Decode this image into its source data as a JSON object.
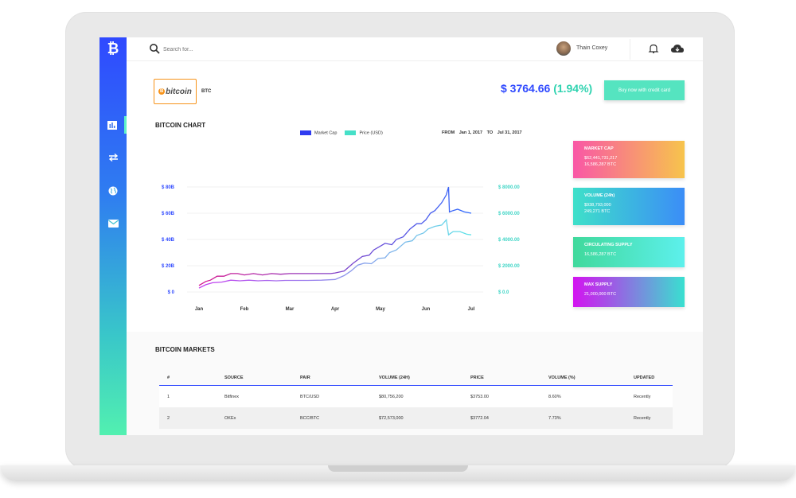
{
  "topbar": {
    "search_placeholder": "Search for...",
    "user_name": "Thain Coxey"
  },
  "coin": {
    "logo_text": "bitcoin",
    "logo_mark": "B",
    "symbol": "BTC",
    "price": "$ 3764.66",
    "change": "(1.94%)",
    "buy_label": "Buy now with credit card"
  },
  "sidebar": {
    "logo": "₿",
    "items": [
      {
        "icon": "bar-chart-icon",
        "active": true
      },
      {
        "icon": "exchange-icon",
        "active": false
      },
      {
        "icon": "globe-icon",
        "active": false
      },
      {
        "icon": "mail-icon",
        "active": false
      }
    ]
  },
  "chart_section": {
    "title": "BITCOIN CHART",
    "from_label": "FROM",
    "from_date": "Jan 1, 2017",
    "to_label": "TO",
    "to_date": "Jul 31, 2017"
  },
  "chart_data": {
    "type": "line",
    "x_ticks": [
      "Jan",
      "Feb",
      "Mar",
      "Apr",
      "May",
      "Jun",
      "Jul"
    ],
    "y_left_ticks": [
      "$ 80B",
      "$ 60B",
      "$ 40B",
      "$ 20B",
      "$ 0"
    ],
    "y_right_ticks": [
      "$ 8000.00",
      "$ 6000.00",
      "$ 4000.00",
      "$ 2000.00",
      "$ 0.0"
    ],
    "ylim_left": [
      0,
      80
    ],
    "ylim_right": [
      0,
      8000
    ],
    "grid": true,
    "legend_position": "top",
    "series": [
      {
        "name": "Market Cap",
        "axis": "left",
        "color_start": "#d6158f",
        "color_end": "#2f6bff",
        "values": [
          [
            0.0,
            5
          ],
          [
            0.15,
            8
          ],
          [
            0.25,
            9
          ],
          [
            0.4,
            12
          ],
          [
            0.55,
            12
          ],
          [
            0.7,
            14
          ],
          [
            0.85,
            14
          ],
          [
            1.0,
            13
          ],
          [
            1.2,
            14
          ],
          [
            1.4,
            13
          ],
          [
            1.6,
            14
          ],
          [
            1.8,
            13.5
          ],
          [
            2.0,
            14
          ],
          [
            2.3,
            14
          ],
          [
            2.6,
            14
          ],
          [
            2.9,
            14
          ],
          [
            3.0,
            14.5
          ],
          [
            3.2,
            16
          ],
          [
            3.4,
            22
          ],
          [
            3.6,
            27
          ],
          [
            3.75,
            28
          ],
          [
            3.85,
            32
          ],
          [
            4.0,
            35
          ],
          [
            4.1,
            37
          ],
          [
            4.25,
            36
          ],
          [
            4.35,
            40
          ],
          [
            4.5,
            42
          ],
          [
            4.65,
            48
          ],
          [
            4.8,
            52
          ],
          [
            4.9,
            52
          ],
          [
            5.0,
            55
          ],
          [
            5.1,
            60
          ],
          [
            5.2,
            62
          ],
          [
            5.35,
            68
          ],
          [
            5.45,
            74
          ],
          [
            5.5,
            80
          ],
          [
            5.52,
            61
          ],
          [
            5.6,
            62
          ],
          [
            5.7,
            63
          ],
          [
            5.85,
            61
          ],
          [
            6.0,
            60
          ]
        ]
      },
      {
        "name": "Price (USD)",
        "axis": "right",
        "color_start": "#c43cf0",
        "color_end": "#5fe3e8",
        "values": [
          [
            0.0,
            300
          ],
          [
            0.15,
            550
          ],
          [
            0.3,
            700
          ],
          [
            0.5,
            750
          ],
          [
            0.7,
            900
          ],
          [
            0.9,
            850
          ],
          [
            1.1,
            900
          ],
          [
            1.3,
            850
          ],
          [
            1.5,
            880
          ],
          [
            1.7,
            850
          ],
          [
            1.9,
            880
          ],
          [
            2.1,
            880
          ],
          [
            2.4,
            880
          ],
          [
            2.7,
            900
          ],
          [
            3.0,
            950
          ],
          [
            3.2,
            1250
          ],
          [
            3.35,
            1600
          ],
          [
            3.5,
            2050
          ],
          [
            3.65,
            2200
          ],
          [
            3.8,
            2150
          ],
          [
            3.95,
            2550
          ],
          [
            4.1,
            2600
          ],
          [
            4.2,
            3000
          ],
          [
            4.35,
            3200
          ],
          [
            4.55,
            3800
          ],
          [
            4.7,
            3900
          ],
          [
            4.8,
            4300
          ],
          [
            4.95,
            4500
          ],
          [
            5.05,
            4800
          ],
          [
            5.2,
            5000
          ],
          [
            5.35,
            5100
          ],
          [
            5.45,
            5500
          ],
          [
            5.5,
            4350
          ],
          [
            5.6,
            4600
          ],
          [
            5.75,
            4600
          ],
          [
            5.9,
            4400
          ],
          [
            6.0,
            4350
          ]
        ]
      }
    ]
  },
  "stats": [
    {
      "title": "MARKET CAP",
      "lines": [
        "$62,441,731,217",
        "16,586,287 BTC"
      ],
      "color_start": "#f957a6",
      "color_end": "#f7c44c"
    },
    {
      "title": "VOLUME (24h)",
      "lines": [
        "$938,793,000",
        "249,271 BTC"
      ],
      "color_start": "#3ee0c9",
      "color_end": "#3b8df7"
    },
    {
      "title": "CIRCULATING SUPPLY",
      "lines": [
        "16,586,287 BTC"
      ],
      "color_start": "#40d99c",
      "color_end": "#5df0ec"
    },
    {
      "title": "MAX SUPPLY",
      "lines": [
        "21,000,000 BTC"
      ],
      "color_start": "#d313f0",
      "color_end": "#39e0d0"
    }
  ],
  "markets": {
    "title": "BITCOIN MARKETS",
    "columns": [
      "#",
      "SOURCE",
      "PAIR",
      "VOLUME (24H)",
      "PRICE",
      "VOLUME (%)",
      "UPDATED"
    ],
    "rows": [
      [
        "1",
        "Bitfinex",
        "BTC/USD",
        "$80,756,200",
        "$3753.00",
        "8.60%",
        "Recently"
      ],
      [
        "2",
        "OKEx",
        "BCC/BTC",
        "$72,573,000",
        "$3772.04",
        "7.73%",
        "Recently"
      ]
    ]
  }
}
